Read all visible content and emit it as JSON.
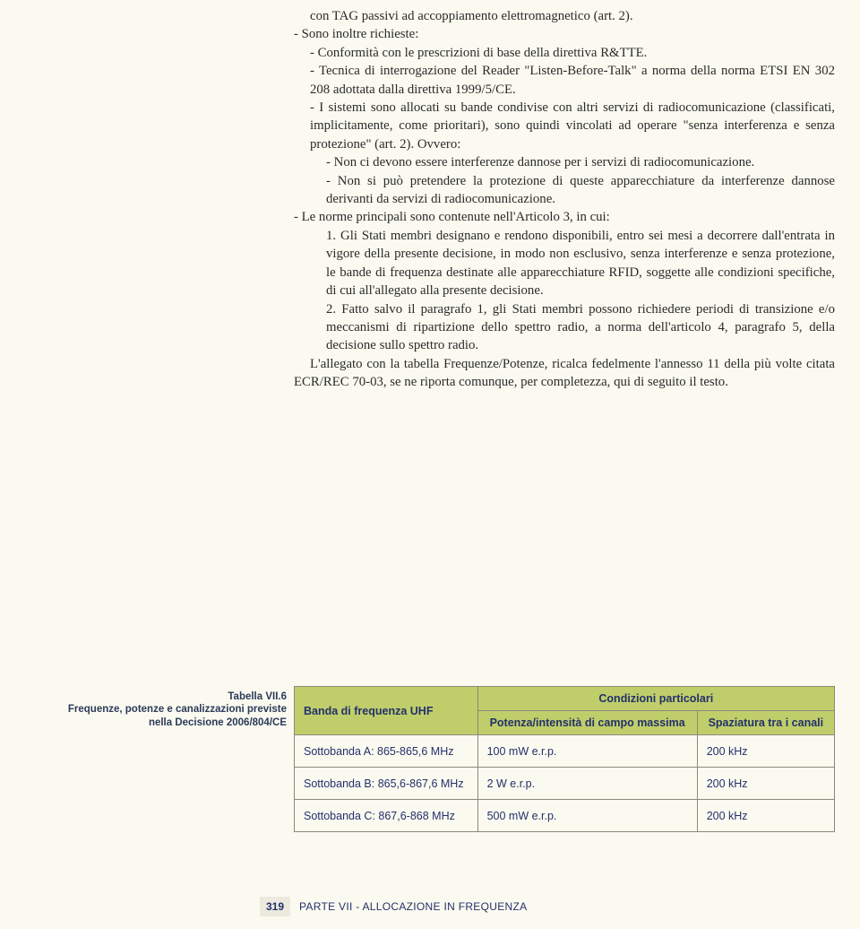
{
  "body": {
    "line0": "con TAG passivi ad accoppiamento elettromagnetico (art. 2).",
    "line1": "- Sono inoltre richieste:",
    "line2": "- Conformità con le prescrizioni di base della direttiva R&TTE.",
    "line3": "- Tecnica di interrogazione del Reader \"Listen-Before-Talk\" a norma della norma ETSI EN 302 208 adottata dalla direttiva 1999/5/CE.",
    "line4": "- I sistemi sono allocati su bande condivise con altri servizi di radiocomunicazione (classificati, implicitamente, come prioritari), sono quindi vincolati ad operare \"senza interferenza e senza protezione\" (art. 2). Ovvero:",
    "line5": "- Non ci devono essere interferenze dannose per i servizi di radiocomunicazione.",
    "line6": "- Non si può pretendere la protezione di queste apparecchiature da interferenze dannose derivanti da servizi di radiocomunicazione.",
    "line7": "- Le norme principali sono contenute nell'Articolo 3, in cui:",
    "line8": "1. Gli Stati membri designano e rendono disponibili, entro sei mesi a decorrere dall'entrata in vigore della presente decisione, in modo non esclusivo, senza interferenze e senza protezione, le bande di frequenza destinate alle apparecchiature RFID, soggette alle condizioni specifiche, di cui all'allegato alla presente decisione.",
    "line9": "2. Fatto salvo il paragrafo 1, gli Stati membri possono richiedere periodi di transizione e/o meccanismi di ripartizione dello spettro radio, a norma dell'articolo 4, paragrafo 5, della decisione sullo spettro radio.",
    "final": "L'allegato con la tabella Frequenze/Potenze, ricalca fedelmente l'annesso 11 della più volte citata ECR/REC 70-03, se ne riporta comunque, per completezza, qui di seguito il testo."
  },
  "caption": {
    "title": "Tabella VII.6",
    "line1": "Frequenze, potenze e canalizzazioni previste",
    "line2": "nella Decisione 2006/804/CE"
  },
  "table": {
    "type": "table",
    "colors": {
      "header_bg": "#bfce6a",
      "header_text": "#24306a",
      "cell_bg": "#fbfaf0",
      "cell_text": "#24306a",
      "border": "#8a8a7a"
    },
    "header": {
      "band": "Banda di frequenza UHF",
      "cond": "Condizioni particolari",
      "power": "Potenza/intensità di campo massima",
      "spacing": "Spaziatura tra i canali"
    },
    "rows": [
      {
        "label": "Sottobanda A: 865-865,6 MHz",
        "power": "100 mW e.r.p.",
        "spacing": "200 kHz"
      },
      {
        "label": "Sottobanda B: 865,6-867,6 MHz",
        "power": "2 W e.r.p.",
        "spacing": "200 kHz"
      },
      {
        "label": "Sottobanda C: 867,6-868 MHz",
        "power": "500 mW e.r.p.",
        "spacing": "200 kHz"
      }
    ]
  },
  "footer": {
    "page": "319",
    "section": "PARTE VII - ALLOCAZIONE IN FREQUENZA"
  }
}
